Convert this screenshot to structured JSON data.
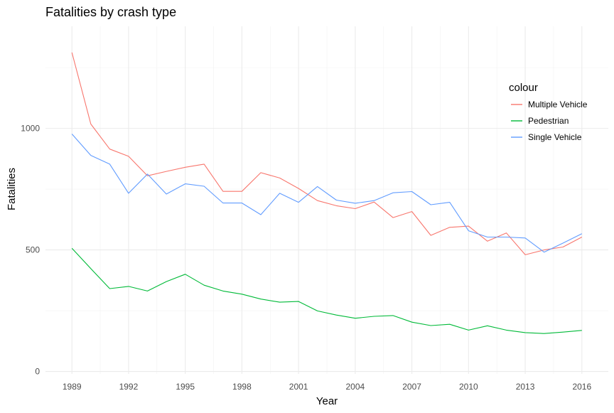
{
  "chart_data": {
    "type": "line",
    "title": "Fatalities by crash type",
    "xlabel": "Year",
    "ylabel": "Fatalities",
    "x": [
      1989,
      1990,
      1991,
      1992,
      1993,
      1994,
      1995,
      1996,
      1997,
      1998,
      1999,
      2000,
      2001,
      2002,
      2003,
      2004,
      2005,
      2006,
      2007,
      2008,
      2009,
      2010,
      2011,
      2012,
      2013,
      2014,
      2015,
      2016
    ],
    "x_ticks": [
      1989,
      1992,
      1995,
      1998,
      2001,
      2004,
      2007,
      2010,
      2013,
      2016
    ],
    "y_ticks": [
      0,
      500,
      1000
    ],
    "xlim": [
      1987.6,
      2017.4
    ],
    "ylim": [
      -10,
      1420
    ],
    "grid": true,
    "legend": {
      "title": "colour",
      "position": "right"
    },
    "series": [
      {
        "name": "Multiple Vehicle",
        "color": "#F8766D",
        "values": [
          1312,
          1018,
          915,
          885,
          805,
          823,
          840,
          853,
          741,
          741,
          818,
          796,
          753,
          703,
          682,
          670,
          697,
          633,
          658,
          560,
          593,
          598,
          536,
          570,
          480,
          500,
          512,
          553
        ]
      },
      {
        "name": "Pedestrian",
        "color": "#00BA38",
        "values": [
          507,
          423,
          341,
          350,
          331,
          370,
          400,
          355,
          331,
          318,
          298,
          285,
          288,
          249,
          232,
          219,
          227,
          230,
          203,
          189,
          194,
          170,
          188,
          170,
          160,
          156,
          162,
          169
        ]
      },
      {
        "name": "Single Vehicle",
        "color": "#619CFF",
        "values": [
          977,
          889,
          853,
          733,
          812,
          730,
          772,
          762,
          693,
          693,
          645,
          733,
          696,
          761,
          705,
          692,
          703,
          735,
          740,
          686,
          696,
          579,
          553,
          553,
          549,
          491,
          528,
          567
        ]
      }
    ]
  }
}
